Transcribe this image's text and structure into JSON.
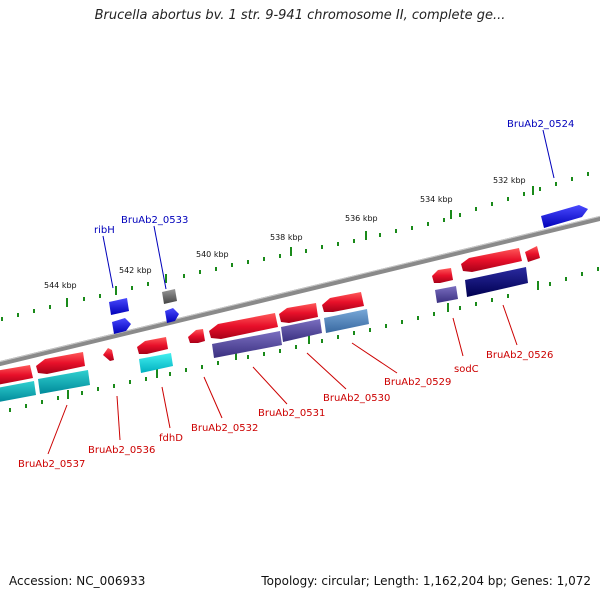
{
  "title": "Brucella abortus bv. 1 str. 9-941 chromosome II, complete ge...",
  "footer": {
    "accession": "Accession: NC_006933",
    "summary": "Topology: circular; Length: 1,162,204 bp; Genes: 1,072"
  },
  "colors": {
    "backbone": "#7a7a7a",
    "tick": "#1a8a1a",
    "red": "#e8102a",
    "blue": "#1010e0",
    "label_red": "#cc0000",
    "label_blue": "#0000bb"
  },
  "kbp_labels": [
    "532 kbp",
    "534 kbp",
    "536 kbp",
    "538 kbp",
    "540 kbp",
    "542 kbp",
    "544 kbp"
  ],
  "gene_labels": {
    "top": [
      "BruAb2_0524",
      "BruAb2_0533",
      "ribH"
    ],
    "bottom": [
      "BruAb2_0526",
      "sodC",
      "BruAb2_0529",
      "BruAb2_0530",
      "BruAb2_0531",
      "BruAb2_0532",
      "fdhD",
      "BruAb2_0536",
      "BruAb2_0537"
    ]
  }
}
